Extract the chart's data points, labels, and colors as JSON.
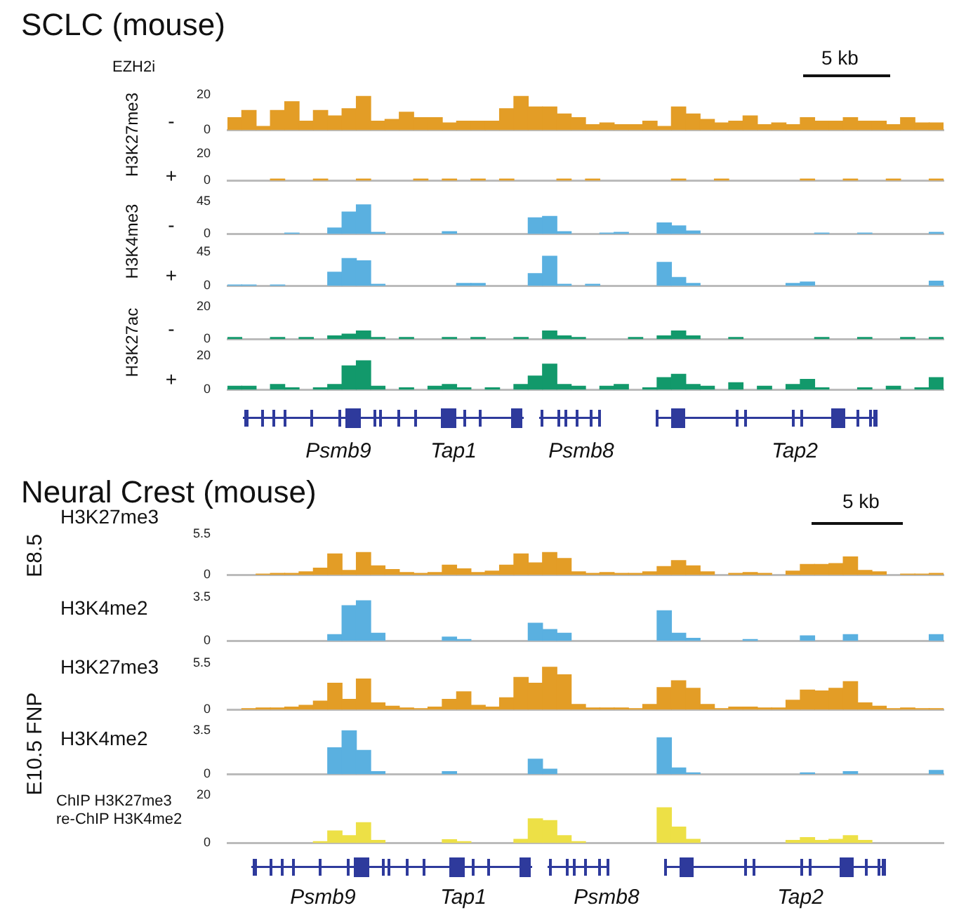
{
  "chart_data": [
    {
      "type": "bar",
      "title": "SCLC (mouse)",
      "ylabel": "H3K27me3",
      "annotations": [
        "EZH2i",
        "5 kb",
        "-"
      ],
      "tick_labels": "y",
      "categories": [
        null,
        null,
        null,
        null,
        null,
        null,
        null,
        null,
        null,
        null,
        null,
        null,
        null,
        null,
        null,
        null,
        null,
        null,
        null,
        null,
        null,
        null,
        null,
        null,
        null,
        null,
        null,
        null,
        null,
        null,
        null,
        null,
        null,
        null,
        null,
        null,
        null,
        null,
        null,
        null,
        null,
        null,
        null,
        null,
        null,
        null,
        null,
        null,
        null,
        null
      ],
      "ylim": [
        0,
        20
      ],
      "yticks": [
        0,
        20
      ],
      "color": "#e39d26",
      "values": [
        7,
        11,
        2,
        11,
        16,
        5,
        11,
        8,
        12,
        19,
        5,
        6,
        10,
        7,
        7,
        4,
        5,
        5,
        5,
        12,
        19,
        13,
        13,
        9,
        7,
        3,
        4,
        3,
        3,
        5,
        2,
        13,
        9,
        6,
        4,
        5,
        8,
        3,
        4,
        3,
        7,
        5,
        5,
        7,
        5,
        5,
        3,
        7,
        4,
        4
      ]
    },
    {
      "type": "bar",
      "annotations": [
        "+"
      ],
      "tick_labels": "y",
      "categories": [
        null,
        null,
        null,
        null,
        null,
        null,
        null,
        null,
        null,
        null,
        null,
        null,
        null,
        null,
        null,
        null,
        null,
        null,
        null,
        null,
        null,
        null,
        null,
        null,
        null,
        null,
        null,
        null,
        null,
        null,
        null,
        null,
        null,
        null,
        null,
        null,
        null,
        null,
        null,
        null,
        null,
        null,
        null,
        null,
        null,
        null,
        null,
        null,
        null,
        null
      ],
      "ylim": [
        0,
        20
      ],
      "yticks": [
        0,
        20
      ],
      "color": "#e39d26",
      "values": [
        0,
        0,
        0,
        1,
        0,
        0,
        1,
        0,
        0,
        1,
        0,
        0,
        0,
        1,
        0,
        1,
        0,
        1,
        0,
        1,
        0,
        0,
        0,
        1,
        0,
        1,
        0,
        0,
        0,
        0,
        0,
        1,
        0,
        0,
        1,
        0,
        0,
        0,
        0,
        0,
        1,
        0,
        0,
        1,
        0,
        0,
        1,
        0,
        0,
        1
      ]
    },
    {
      "type": "bar",
      "ylabel": "H3K4me3",
      "annotations": [
        "-"
      ],
      "tick_labels": "y",
      "categories": [
        null,
        null,
        null,
        null,
        null,
        null,
        null,
        null,
        null,
        null,
        null,
        null,
        null,
        null,
        null,
        null,
        null,
        null,
        null,
        null,
        null,
        null,
        null,
        null,
        null,
        null,
        null,
        null,
        null,
        null,
        null,
        null,
        null,
        null,
        null,
        null,
        null,
        null,
        null,
        null,
        null,
        null,
        null,
        null,
        null,
        null,
        null,
        null,
        null,
        null
      ],
      "ylim": [
        0,
        45
      ],
      "yticks": [
        0,
        45
      ],
      "color": "#5ab0e0",
      "values": [
        0,
        0,
        0,
        0,
        1,
        0,
        0,
        8,
        30,
        40,
        2,
        0,
        0,
        0,
        0,
        3,
        0,
        0,
        0,
        0,
        0,
        22,
        24,
        3,
        0,
        0,
        1,
        2,
        0,
        0,
        15,
        11,
        4,
        0,
        0,
        0,
        0,
        0,
        0,
        0,
        0,
        1,
        0,
        0,
        1,
        0,
        0,
        0,
        0,
        2
      ]
    },
    {
      "type": "bar",
      "annotations": [
        "+"
      ],
      "tick_labels": "y",
      "categories": [
        null,
        null,
        null,
        null,
        null,
        null,
        null,
        null,
        null,
        null,
        null,
        null,
        null,
        null,
        null,
        null,
        null,
        null,
        null,
        null,
        null,
        null,
        null,
        null,
        null,
        null,
        null,
        null,
        null,
        null,
        null,
        null,
        null,
        null,
        null,
        null,
        null,
        null,
        null,
        null,
        null,
        null,
        null,
        null,
        null,
        null,
        null,
        null,
        null,
        null
      ],
      "ylim": [
        0,
        45
      ],
      "yticks": [
        0,
        45
      ],
      "color": "#5ab0e0",
      "values": [
        1,
        1,
        0,
        1,
        0,
        0,
        0,
        18,
        36,
        33,
        2,
        0,
        0,
        0,
        0,
        0,
        3,
        3,
        0,
        0,
        0,
        16,
        39,
        2,
        0,
        2,
        0,
        0,
        0,
        0,
        31,
        11,
        3,
        0,
        0,
        0,
        0,
        0,
        0,
        3,
        5,
        0,
        0,
        0,
        0,
        0,
        0,
        0,
        0,
        6
      ]
    },
    {
      "type": "bar",
      "ylabel": "H3K27ac",
      "annotations": [
        "-"
      ],
      "tick_labels": "y",
      "categories": [
        null,
        null,
        null,
        null,
        null,
        null,
        null,
        null,
        null,
        null,
        null,
        null,
        null,
        null,
        null,
        null,
        null,
        null,
        null,
        null,
        null,
        null,
        null,
        null,
        null,
        null,
        null,
        null,
        null,
        null,
        null,
        null,
        null,
        null,
        null,
        null,
        null,
        null,
        null,
        null,
        null,
        null,
        null,
        null,
        null,
        null,
        null,
        null,
        null,
        null
      ],
      "ylim": [
        0,
        20
      ],
      "yticks": [
        0,
        20
      ],
      "color": "#12996b",
      "values": [
        1,
        0,
        0,
        1,
        0,
        1,
        0,
        2,
        3,
        5,
        1,
        0,
        1,
        0,
        0,
        1,
        0,
        1,
        0,
        0,
        1,
        0,
        5,
        2,
        1,
        0,
        0,
        0,
        1,
        0,
        2,
        5,
        2,
        0,
        0,
        1,
        0,
        0,
        0,
        0,
        0,
        1,
        0,
        0,
        1,
        0,
        0,
        1,
        0,
        1
      ]
    },
    {
      "type": "bar",
      "annotations": [
        "+"
      ],
      "tick_labels": "y",
      "categories": [
        null,
        null,
        null,
        null,
        null,
        null,
        null,
        null,
        null,
        null,
        null,
        null,
        null,
        null,
        null,
        null,
        null,
        null,
        null,
        null,
        null,
        null,
        null,
        null,
        null,
        null,
        null,
        null,
        null,
        null,
        null,
        null,
        null,
        null,
        null,
        null,
        null,
        null,
        null,
        null,
        null,
        null,
        null,
        null,
        null,
        null,
        null,
        null,
        null,
        null
      ],
      "ylim": [
        0,
        20
      ],
      "yticks": [
        0,
        20
      ],
      "color": "#12996b",
      "values": [
        2,
        2,
        0,
        3,
        1,
        0,
        1,
        3,
        14,
        17,
        2,
        0,
        1,
        0,
        2,
        3,
        1,
        0,
        1,
        0,
        3,
        8,
        15,
        3,
        2,
        0,
        2,
        3,
        0,
        1,
        7,
        9,
        3,
        2,
        0,
        4,
        0,
        2,
        0,
        3,
        6,
        1,
        0,
        0,
        1,
        0,
        2,
        0,
        1,
        7
      ]
    },
    {
      "type": "other",
      "annotations": [
        "Psmb9",
        "Tap1",
        "Psmb8",
        "Tap2"
      ]
    },
    {
      "type": "bar",
      "title": "Neural Crest (mouse)",
      "ylabel": "E8.5",
      "subtitle": "H3K27me3",
      "annotations": [
        "5 kb"
      ],
      "tick_labels": "y",
      "categories": [
        null,
        null,
        null,
        null,
        null,
        null,
        null,
        null,
        null,
        null,
        null,
        null,
        null,
        null,
        null,
        null,
        null,
        null,
        null,
        null,
        null,
        null,
        null,
        null,
        null,
        null,
        null,
        null,
        null,
        null,
        null,
        null,
        null,
        null,
        null,
        null,
        null,
        null,
        null,
        null,
        null,
        null,
        null,
        null,
        null,
        null,
        null,
        null,
        null,
        null
      ],
      "ylim": [
        0,
        5.5
      ],
      "yticks": [
        0,
        5.5
      ],
      "color": "#e39d26",
      "values": [
        0,
        0,
        0.1,
        0.2,
        0.2,
        0.4,
        0.9,
        2.8,
        0.6,
        3,
        1.2,
        0.7,
        0.3,
        0.2,
        0.3,
        1.3,
        0.8,
        0.3,
        0.5,
        1.3,
        2.8,
        1.6,
        3,
        2.2,
        0.4,
        0.2,
        0.3,
        0.2,
        0.2,
        0.4,
        1.1,
        1.9,
        1.2,
        0.4,
        0,
        0.2,
        0.3,
        0.2,
        0,
        0.5,
        1.4,
        1.4,
        1.5,
        2.4,
        0.6,
        0.4,
        0,
        0.1,
        0.1,
        0.2
      ]
    },
    {
      "type": "bar",
      "subtitle": "H3K4me2",
      "tick_labels": "y",
      "categories": [
        null,
        null,
        null,
        null,
        null,
        null,
        null,
        null,
        null,
        null,
        null,
        null,
        null,
        null,
        null,
        null,
        null,
        null,
        null,
        null,
        null,
        null,
        null,
        null,
        null,
        null,
        null,
        null,
        null,
        null,
        null,
        null,
        null,
        null,
        null,
        null,
        null,
        null,
        null,
        null,
        null,
        null,
        null,
        null,
        null,
        null,
        null,
        null,
        null,
        null
      ],
      "ylim": [
        0,
        3.5
      ],
      "yticks": [
        0,
        3.5
      ],
      "color": "#5ab0e0",
      "values": [
        0,
        0,
        0,
        0,
        0,
        0,
        0,
        0.5,
        2.8,
        3.2,
        0.6,
        0,
        0,
        0,
        0,
        0.3,
        0.1,
        0,
        0,
        0,
        0,
        1.4,
        0.9,
        0.6,
        0,
        0,
        0,
        0,
        0,
        0,
        2.4,
        0.6,
        0.2,
        0,
        0,
        0,
        0.1,
        0,
        0,
        0,
        0.4,
        0,
        0,
        0.5,
        0,
        0,
        0,
        0,
        0,
        0.5
      ]
    },
    {
      "type": "bar",
      "ylabel": "E10.5 FNP",
      "subtitle": "H3K27me3",
      "tick_labels": "y",
      "categories": [
        null,
        null,
        null,
        null,
        null,
        null,
        null,
        null,
        null,
        null,
        null,
        null,
        null,
        null,
        null,
        null,
        null,
        null,
        null,
        null,
        null,
        null,
        null,
        null,
        null,
        null,
        null,
        null,
        null,
        null,
        null,
        null,
        null,
        null,
        null,
        null,
        null,
        null,
        null,
        null,
        null,
        null,
        null,
        null,
        null,
        null,
        null,
        null,
        null,
        null
      ],
      "ylim": [
        0,
        5.5
      ],
      "yticks": [
        0,
        5.5
      ],
      "color": "#e39d26",
      "values": [
        0,
        0.1,
        0.2,
        0.2,
        0.3,
        0.5,
        1,
        3.1,
        1.2,
        3.6,
        0.8,
        0.4,
        0.2,
        0.1,
        0.3,
        1.2,
        2.1,
        0.5,
        0.3,
        1.4,
        3.8,
        3.1,
        5,
        4.1,
        0.6,
        0.2,
        0.2,
        0.2,
        0.1,
        0.6,
        2.6,
        3.4,
        2.5,
        0.6,
        0.1,
        0.3,
        0.3,
        0.2,
        0.2,
        1.1,
        2.3,
        2.2,
        2.5,
        3.3,
        0.8,
        0.4,
        0.1,
        0.2,
        0.1,
        0.1
      ]
    },
    {
      "type": "bar",
      "subtitle": "H3K4me2",
      "tick_labels": "y",
      "categories": [
        null,
        null,
        null,
        null,
        null,
        null,
        null,
        null,
        null,
        null,
        null,
        null,
        null,
        null,
        null,
        null,
        null,
        null,
        null,
        null,
        null,
        null,
        null,
        null,
        null,
        null,
        null,
        null,
        null,
        null,
        null,
        null,
        null,
        null,
        null,
        null,
        null,
        null,
        null,
        null,
        null,
        null,
        null,
        null,
        null,
        null,
        null,
        null,
        null,
        null
      ],
      "ylim": [
        0,
        3.5
      ],
      "yticks": [
        0,
        3.5
      ],
      "color": "#5ab0e0",
      "values": [
        0,
        0,
        0,
        0,
        0,
        0,
        0,
        2.1,
        3.5,
        1.9,
        0.2,
        0,
        0,
        0,
        0,
        0.2,
        0,
        0,
        0,
        0,
        0,
        1.2,
        0.4,
        0,
        0,
        0,
        0,
        0,
        0,
        0,
        2.9,
        0.5,
        0.1,
        0,
        0,
        0,
        0,
        0,
        0,
        0,
        0.1,
        0,
        0,
        0.2,
        0,
        0,
        0,
        0,
        0,
        0.3
      ]
    },
    {
      "type": "bar",
      "subtitle": "ChIP H3K27me3\nre-ChIP H3K4me2",
      "tick_labels": "y",
      "categories": [
        null,
        null,
        null,
        null,
        null,
        null,
        null,
        null,
        null,
        null,
        null,
        null,
        null,
        null,
        null,
        null,
        null,
        null,
        null,
        null,
        null,
        null,
        null,
        null,
        null,
        null,
        null,
        null,
        null,
        null,
        null,
        null,
        null,
        null,
        null,
        null,
        null,
        null,
        null,
        null,
        null,
        null,
        null,
        null,
        null,
        null,
        null,
        null,
        null,
        null
      ],
      "ylim": [
        0,
        20
      ],
      "yticks": [
        0,
        20
      ],
      "color": "#ede046",
      "values": [
        0,
        0,
        0,
        0,
        0,
        0,
        0.5,
        5,
        3,
        8.4,
        1,
        0,
        0,
        0,
        0,
        1.3,
        0.5,
        0,
        0,
        0,
        1.5,
        10,
        9.3,
        3,
        0.5,
        0,
        0,
        0,
        0,
        0,
        14.6,
        6.6,
        1.5,
        0,
        0,
        0,
        0,
        0,
        0,
        1,
        2.2,
        1,
        1.5,
        3,
        1,
        0,
        0,
        0,
        0,
        0
      ]
    },
    {
      "type": "other",
      "annotations": [
        "Psmb9",
        "Tap1",
        "Psmb8",
        "Tap2"
      ]
    }
  ]
}
